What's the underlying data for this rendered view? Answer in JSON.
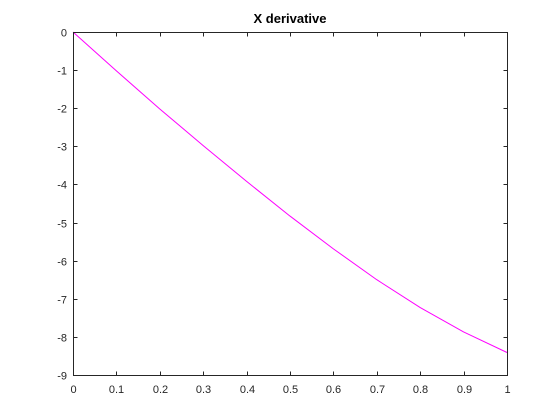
{
  "chart_data": {
    "type": "line",
    "title": "X derivative",
    "xlabel": "",
    "ylabel": "",
    "xlim": [
      0,
      1
    ],
    "ylim": [
      -9,
      0
    ],
    "xticks": [
      0,
      0.1,
      0.2,
      0.3,
      0.4,
      0.5,
      0.6,
      0.7,
      0.8,
      0.9,
      1
    ],
    "xtick_labels": [
      "0",
      "0.1",
      "0.2",
      "0.3",
      "0.4",
      "0.5",
      "0.6",
      "0.7",
      "0.8",
      "0.9",
      "1"
    ],
    "yticks": [
      0,
      -1,
      -2,
      -3,
      -4,
      -5,
      -6,
      -7,
      -8,
      -9
    ],
    "ytick_labels": [
      "0",
      "-1",
      "-2",
      "-3",
      "-4",
      "-5",
      "-6",
      "-7",
      "-8",
      "-9"
    ],
    "grid": false,
    "series": [
      {
        "color": "#ff00ff",
        "x": [
          0,
          0.1,
          0.2,
          0.3,
          0.4,
          0.5,
          0.6,
          0.7,
          0.8,
          0.9,
          1.0
        ],
        "y": [
          0,
          -1.02,
          -2.02,
          -2.98,
          -3.92,
          -4.83,
          -5.69,
          -6.5,
          -7.23,
          -7.87,
          -8.41
        ]
      }
    ]
  }
}
